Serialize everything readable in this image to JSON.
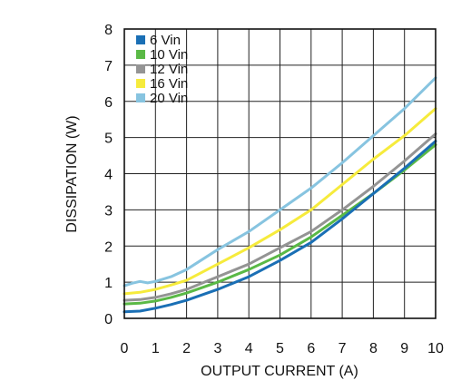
{
  "chart_data": {
    "type": "line",
    "title": "",
    "xlabel": "OUTPUT CURRENT (A)",
    "ylabel": "DISSIPATION (W)",
    "xlim": [
      0,
      10
    ],
    "ylim": [
      0,
      8
    ],
    "xticks": [
      "0",
      "1",
      "2",
      "3",
      "4",
      "5",
      "6",
      "7",
      "8",
      "9",
      "10"
    ],
    "yticks": [
      "0",
      "1",
      "2",
      "3",
      "4",
      "5",
      "6",
      "7",
      "8"
    ],
    "grid": true,
    "legend_position": "top-left",
    "series": [
      {
        "name": "6 Vin",
        "color": "#1a6fb5",
        "x": [
          0,
          0.5,
          1,
          1.5,
          2,
          3,
          4,
          5,
          6,
          7,
          8,
          9,
          10
        ],
        "y": [
          0.18,
          0.2,
          0.28,
          0.38,
          0.5,
          0.8,
          1.15,
          1.6,
          2.1,
          2.75,
          3.45,
          4.15,
          4.9
        ]
      },
      {
        "name": "10 Vin",
        "color": "#5ab946",
        "x": [
          0,
          0.5,
          1,
          1.5,
          2,
          3,
          4,
          5,
          6,
          7,
          8,
          9,
          10
        ],
        "y": [
          0.4,
          0.42,
          0.48,
          0.58,
          0.7,
          1.0,
          1.35,
          1.75,
          2.25,
          2.85,
          3.45,
          4.1,
          4.8
        ]
      },
      {
        "name": "12 Vin",
        "color": "#949494",
        "x": [
          0,
          0.5,
          1,
          1.5,
          2,
          3,
          4,
          5,
          6,
          7,
          8,
          9,
          10
        ],
        "y": [
          0.5,
          0.52,
          0.58,
          0.68,
          0.8,
          1.15,
          1.5,
          1.95,
          2.4,
          3.0,
          3.65,
          4.35,
          5.1
        ]
      },
      {
        "name": "16 Vin",
        "color": "#f6eb3c",
        "x": [
          0,
          0.5,
          1,
          1.5,
          2,
          3,
          4,
          5,
          6,
          7,
          8,
          9,
          10
        ],
        "y": [
          0.68,
          0.72,
          0.8,
          0.92,
          1.05,
          1.5,
          1.95,
          2.45,
          3.0,
          3.7,
          4.4,
          5.05,
          5.8
        ]
      },
      {
        "name": "20 Vin",
        "color": "#87c4e0",
        "x": [
          0,
          0.25,
          0.5,
          0.75,
          1,
          1.5,
          2,
          3,
          4,
          5,
          6,
          7,
          8,
          9,
          10
        ],
        "y": [
          0.9,
          0.97,
          1.02,
          0.98,
          1.02,
          1.15,
          1.35,
          1.9,
          2.4,
          3.0,
          3.6,
          4.3,
          5.05,
          5.8,
          6.65
        ]
      }
    ]
  }
}
